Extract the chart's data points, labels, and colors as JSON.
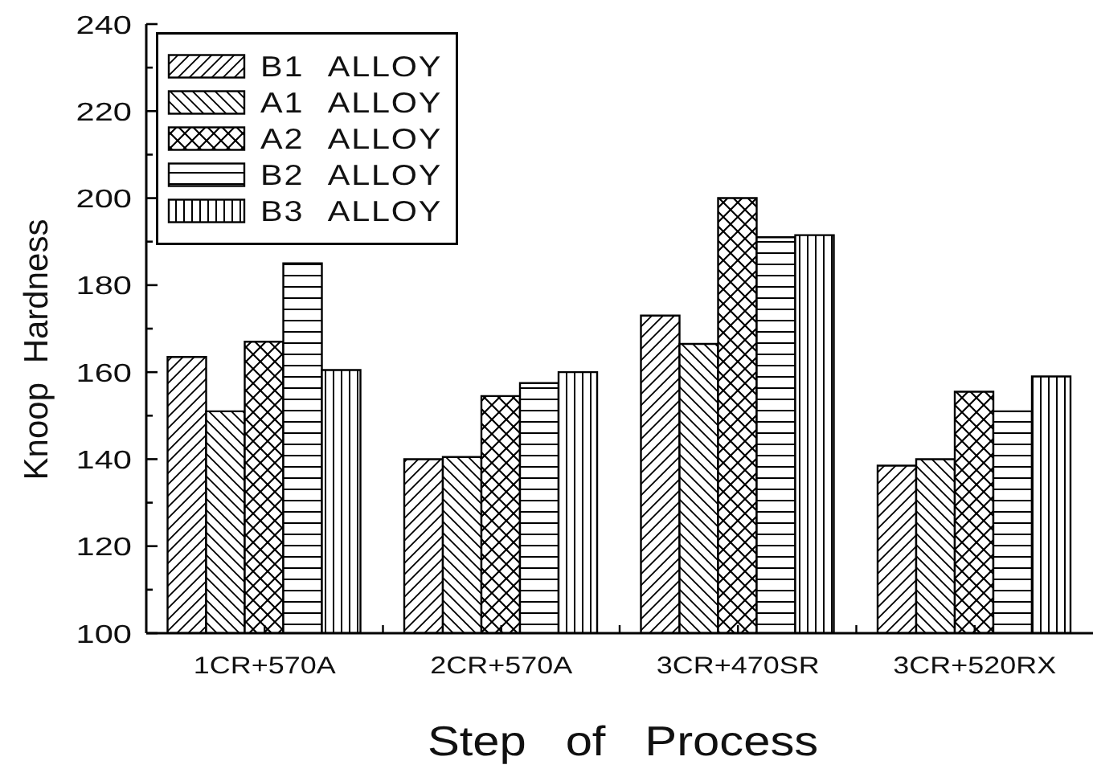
{
  "chart_data": {
    "type": "bar",
    "xlabel": "Step of Process",
    "ylabel": "Knoop Hardness",
    "categories": [
      "1CR+570A",
      "2CR+570A",
      "3CR+470SR",
      "3CR+520RX"
    ],
    "series": [
      {
        "name": "B1 ALLOY",
        "color": "#000000",
        "values": [
          163.5,
          140,
          173,
          138.5
        ]
      },
      {
        "name": "A1 ALLOY",
        "color": "#000000",
        "values": [
          151,
          140.5,
          166.5,
          140
        ]
      },
      {
        "name": "A2 ALLOY",
        "color": "#000000",
        "values": [
          167,
          154.5,
          200,
          155.5
        ]
      },
      {
        "name": "B2 ALLOY",
        "color": "#000000",
        "values": [
          185,
          157.5,
          191,
          151
        ]
      },
      {
        "name": "B3 ALLOY",
        "color": "#000000",
        "values": [
          160.5,
          160,
          191.5,
          159
        ]
      }
    ],
    "ylim": [
      100,
      240
    ],
    "yticks": [
      100,
      {
        "value": 110,
        "label": null
      },
      120,
      {
        "value": 130,
        "label": null
      },
      140,
      {
        "value": 150,
        "label": null
      },
      160,
      {
        "value": 170,
        "label": null
      },
      180,
      {
        "value": 190,
        "label": null
      },
      200,
      {
        "value": 210,
        "label": null
      },
      220,
      {
        "value": 230,
        "label": null
      },
      240
    ],
    "grid": false,
    "legend": "top left"
  }
}
